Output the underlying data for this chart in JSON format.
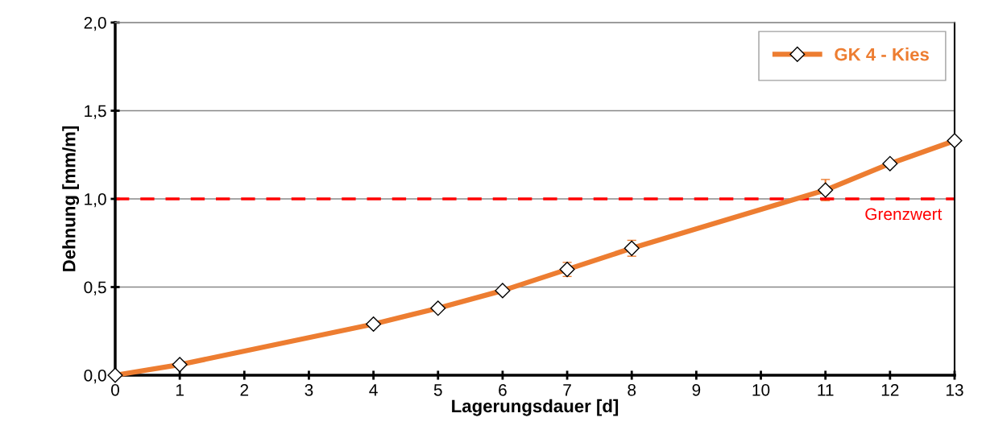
{
  "chart_data": {
    "type": "line",
    "xlabel": "Lagerungsdauer [d]",
    "ylabel": "Dehnung [mm/m]",
    "x": [
      0,
      1,
      4,
      5,
      6,
      7,
      8,
      11,
      12,
      13
    ],
    "series": [
      {
        "name": "GK 4 - Kies",
        "color": "#ed7d31",
        "values": [
          0,
          0.06,
          0.29,
          0.38,
          0.48,
          0.6,
          0.72,
          1.05,
          1.2,
          1.33
        ],
        "errors": [
          null,
          null,
          null,
          null,
          null,
          0.04,
          0.045,
          0.06,
          null,
          null
        ]
      }
    ],
    "xlim": [
      0,
      13
    ],
    "xticks": [
      0,
      1,
      2,
      3,
      4,
      5,
      6,
      7,
      8,
      9,
      10,
      11,
      12,
      13
    ],
    "ylim": [
      0,
      2
    ],
    "yticks": [
      {
        "value": 0,
        "label": "0,0"
      },
      {
        "value": 0.5,
        "label": "0,5"
      },
      {
        "value": 1,
        "label": "1,0"
      },
      {
        "value": 1.5,
        "label": "1,5"
      },
      {
        "value": 2,
        "label": "2,0"
      }
    ],
    "ref_lines": [
      {
        "axis": "y",
        "value": 1,
        "label": "Grenzwert",
        "color": "#ff0000",
        "line_style": "dashed"
      }
    ],
    "grid": "y",
    "legend": "top right",
    "marker": "diamond",
    "line_style": "solid"
  }
}
